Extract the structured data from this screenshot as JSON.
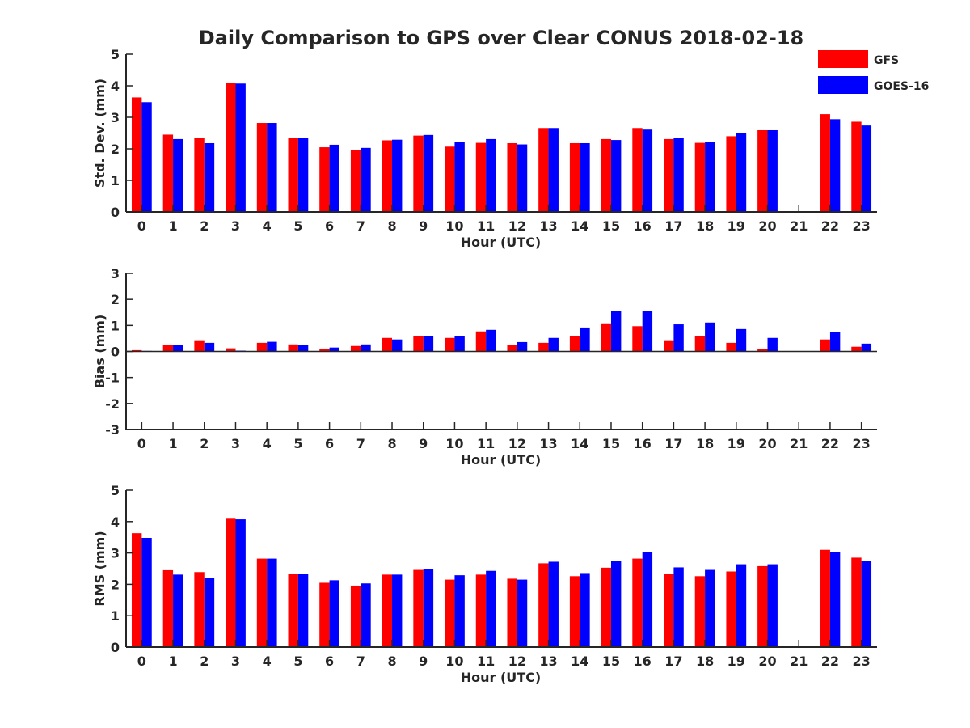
{
  "chart_data": {
    "type": "bar",
    "title": "Daily Comparison to GPS over Clear CONUS 2018-02-18",
    "categories": [
      "0",
      "1",
      "2",
      "3",
      "4",
      "5",
      "6",
      "7",
      "8",
      "9",
      "10",
      "11",
      "12",
      "13",
      "14",
      "15",
      "16",
      "17",
      "18",
      "19",
      "20",
      "21",
      "22",
      "23"
    ],
    "legend": {
      "placement": "top-right",
      "entries": [
        {
          "name": "GFS",
          "color": "#ff0000"
        },
        {
          "name": "GOES-16",
          "color": "#0000ff"
        }
      ]
    },
    "panels": [
      {
        "ylabel": "Std. Dev. (mm)",
        "xlabel": "Hour (UTC)",
        "ylim": [
          0,
          5
        ],
        "yticks": [
          0,
          1,
          2,
          3,
          4,
          5
        ],
        "series": [
          {
            "name": "GFS",
            "color": "#ff0000",
            "values": [
              3.63,
              2.45,
              2.34,
              4.09,
              2.82,
              2.34,
              2.05,
              1.96,
              2.27,
              2.42,
              2.07,
              2.19,
              2.18,
              2.66,
              2.18,
              2.31,
              2.66,
              2.31,
              2.19,
              2.4,
              2.59,
              null,
              3.1,
              2.86
            ]
          },
          {
            "name": "GOES-16",
            "color": "#0000ff",
            "values": [
              3.48,
              2.31,
              2.18,
              4.07,
              2.82,
              2.34,
              2.13,
              2.03,
              2.29,
              2.44,
              2.23,
              2.31,
              2.14,
              2.66,
              2.18,
              2.28,
              2.61,
              2.34,
              2.23,
              2.51,
              2.59,
              null,
              2.94,
              2.74
            ]
          }
        ]
      },
      {
        "ylabel": "Bias (mm)",
        "xlabel": "Hour (UTC)",
        "ylim": [
          -3,
          3
        ],
        "yticks": [
          -3,
          -2,
          -1,
          0,
          1,
          2,
          3
        ],
        "series": [
          {
            "name": "GFS",
            "color": "#ff0000",
            "values": [
              0.05,
              0.24,
              0.43,
              0.12,
              0.33,
              0.27,
              0.11,
              0.21,
              0.52,
              0.58,
              0.52,
              0.77,
              0.24,
              0.33,
              0.58,
              1.08,
              0.97,
              0.43,
              0.58,
              0.33,
              0.09,
              null,
              0.46,
              0.18
            ]
          },
          {
            "name": "GOES-16",
            "color": "#0000ff",
            "values": [
              0.02,
              0.24,
              0.33,
              0.03,
              0.37,
              0.24,
              0.15,
              0.27,
              0.46,
              0.58,
              0.58,
              0.83,
              0.36,
              0.52,
              0.92,
              1.55,
              1.55,
              1.04,
              1.11,
              0.86,
              0.52,
              null,
              0.74,
              0.3
            ]
          }
        ]
      },
      {
        "ylabel": "RMS (mm)",
        "xlabel": "Hour (UTC)",
        "ylim": [
          0,
          5
        ],
        "yticks": [
          0,
          1,
          2,
          3,
          4,
          5
        ],
        "series": [
          {
            "name": "GFS",
            "color": "#ff0000",
            "values": [
              3.63,
              2.45,
              2.39,
              4.09,
              2.82,
              2.34,
              2.05,
              1.96,
              2.31,
              2.46,
              2.15,
              2.31,
              2.18,
              2.67,
              2.26,
              2.53,
              2.82,
              2.34,
              2.26,
              2.41,
              2.58,
              null,
              3.1,
              2.85
            ]
          },
          {
            "name": "GOES-16",
            "color": "#0000ff",
            "values": [
              3.48,
              2.31,
              2.21,
              4.07,
              2.82,
              2.34,
              2.13,
              2.03,
              2.31,
              2.49,
              2.29,
              2.43,
              2.15,
              2.72,
              2.36,
              2.74,
              3.02,
              2.54,
              2.46,
              2.64,
              2.64,
              null,
              3.02,
              2.74
            ]
          }
        ]
      }
    ]
  }
}
